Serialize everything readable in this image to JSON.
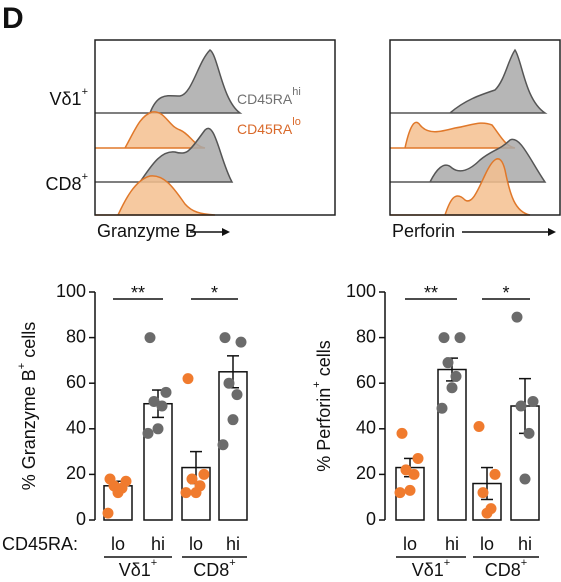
{
  "panel_label": "D",
  "histograms": {
    "rows": [
      {
        "label": "Vδ1",
        "sup": "+"
      },
      {
        "label": "CD8",
        "sup": "+"
      }
    ],
    "legend": [
      {
        "text": "CD45RA",
        "sup": "hi",
        "color": "#707070"
      },
      {
        "text": "CD45RA",
        "sup": "lo",
        "color": "#d9692a"
      }
    ],
    "panels": [
      "Granzyme B",
      "Perforin"
    ]
  },
  "x_prefix": "CD45RA:",
  "chart_data": [
    {
      "type": "bar",
      "ylabel": [
        "% Granzyme B",
        "+",
        " cells"
      ],
      "categories": [
        "lo",
        "hi",
        "lo",
        "hi"
      ],
      "groups": [
        {
          "label": "Vδ1",
          "sup": "+"
        },
        {
          "label": "CD8",
          "sup": "+"
        }
      ],
      "values": [
        15,
        51,
        23,
        65
      ],
      "errors": [
        2,
        6,
        7,
        7
      ],
      "points": [
        [
          18,
          17,
          15,
          14,
          12,
          3
        ],
        [
          80,
          56,
          52,
          50,
          40,
          38
        ],
        [
          62,
          20,
          18,
          15,
          12,
          12
        ],
        [
          80,
          78,
          60,
          55,
          44,
          33
        ]
      ],
      "colors": [
        "#f07b2e",
        "#6b6b6b",
        "#f07b2e",
        "#6b6b6b"
      ],
      "ylim": [
        0,
        100
      ],
      "yticks": [
        0,
        20,
        40,
        60,
        80,
        100
      ],
      "annotations": [
        {
          "text": "**",
          "from": 0,
          "to": 1
        },
        {
          "text": "*",
          "from": 2,
          "to": 3
        }
      ]
    },
    {
      "type": "bar",
      "ylabel": [
        "% Perforin",
        "+",
        " cells"
      ],
      "categories": [
        "lo",
        "hi",
        "lo",
        "hi"
      ],
      "groups": [
        {
          "label": "Vδ1",
          "sup": "+"
        },
        {
          "label": "CD8",
          "sup": "+"
        }
      ],
      "values": [
        23,
        66,
        16,
        50
      ],
      "errors": [
        4,
        5,
        7,
        12
      ],
      "points": [
        [
          38,
          27,
          22,
          20,
          13,
          12
        ],
        [
          80,
          80,
          69,
          63,
          58,
          49
        ],
        [
          41,
          20,
          12,
          5,
          3
        ],
        [
          89,
          52,
          50,
          38,
          18
        ]
      ],
      "colors": [
        "#f07b2e",
        "#6b6b6b",
        "#f07b2e",
        "#6b6b6b"
      ],
      "ylim": [
        0,
        100
      ],
      "yticks": [
        0,
        20,
        40,
        60,
        80,
        100
      ],
      "annotations": [
        {
          "text": "**",
          "from": 0,
          "to": 1
        },
        {
          "text": "*",
          "from": 2,
          "to": 3
        }
      ]
    }
  ]
}
